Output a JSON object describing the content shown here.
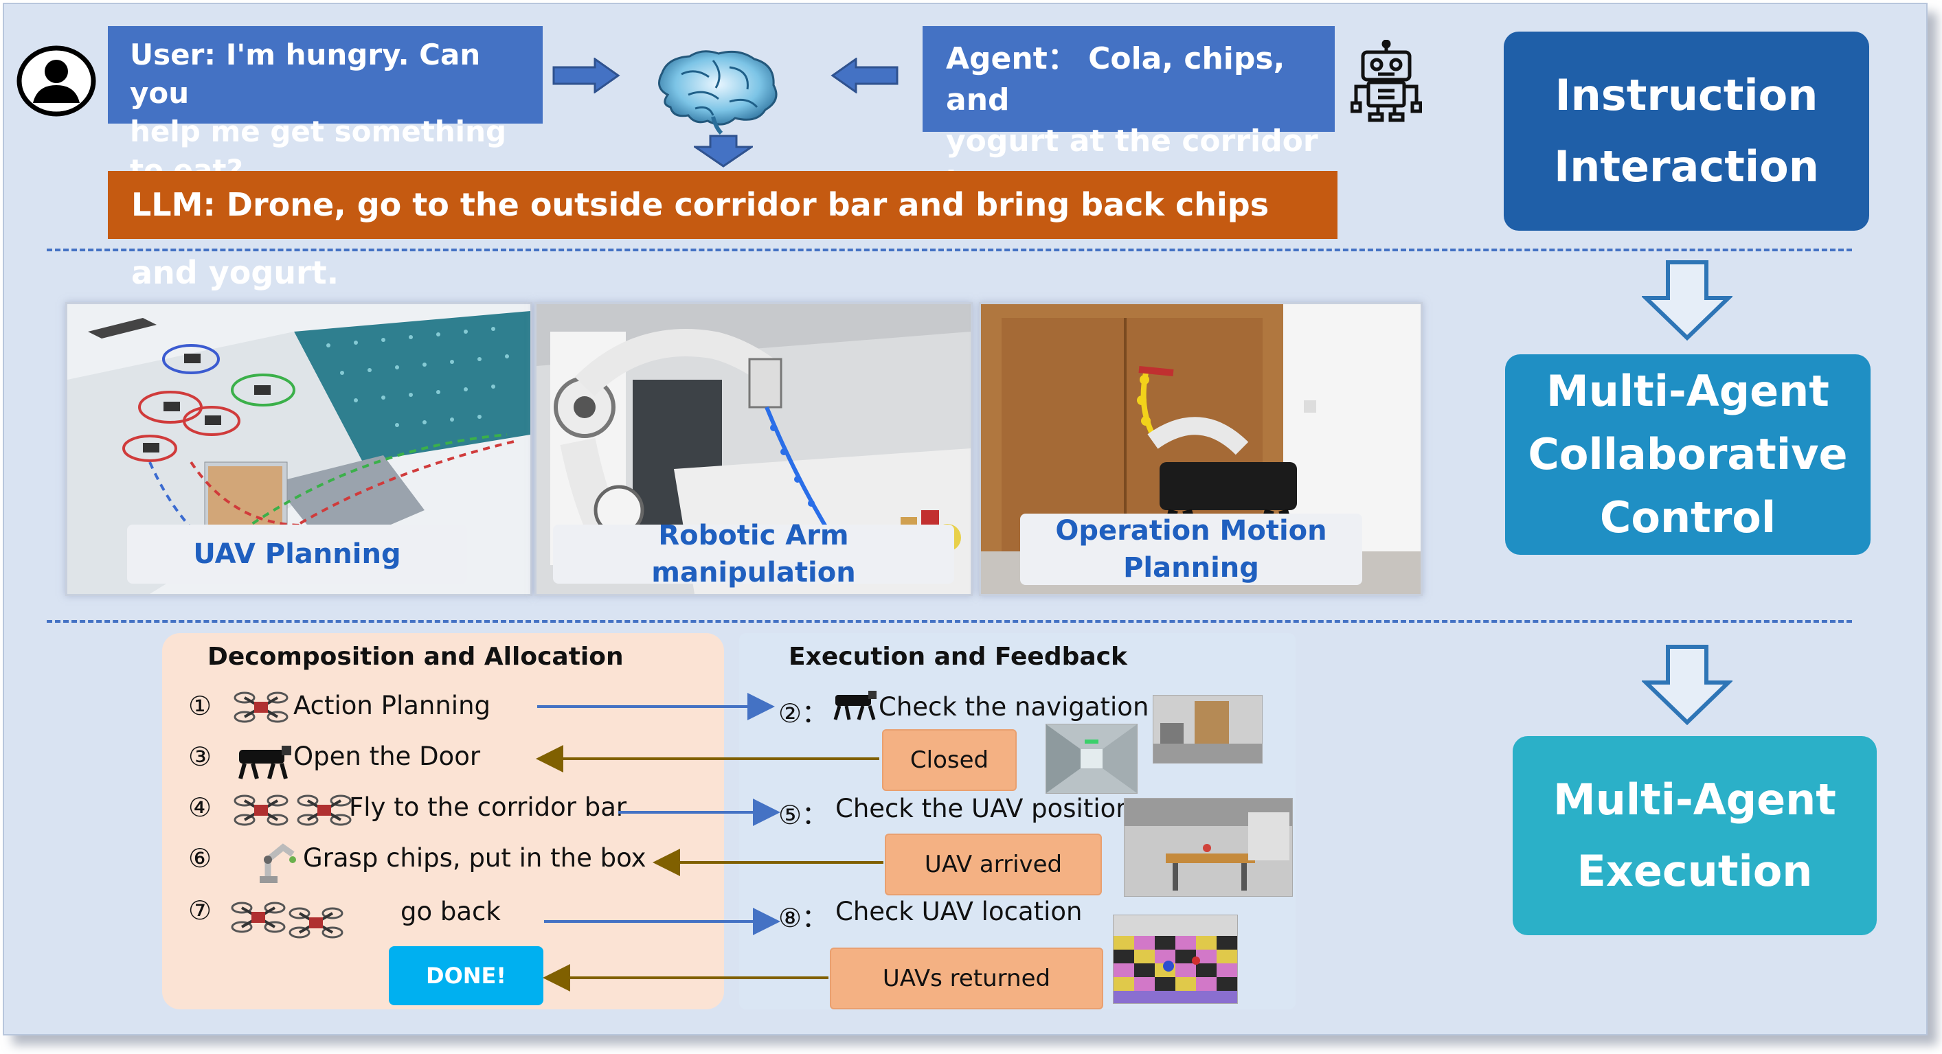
{
  "top": {
    "user_message": [
      "User: I'm hungry. Can you",
      "help me get something to eat?"
    ],
    "agent_message": [
      "Agent： Cola, chips, and",
      "yogurt at the corridor bar"
    ],
    "llm_message": "LLM: Drone, go to the outside corridor bar and bring back chips and yogurt."
  },
  "stages": [
    {
      "lines": [
        "Instruction",
        "Interaction"
      ],
      "color": "#1f5fa8"
    },
    {
      "lines": [
        "Multi-Agent",
        "Collaborative",
        "Control"
      ],
      "color": "#1f8fc4"
    },
    {
      "lines": [
        "Multi-Agent",
        "Execution"
      ],
      "color": "#2bb0c8"
    }
  ],
  "panels": {
    "uav_planning": "UAV Planning",
    "robotic_arm": "Robotic Arm manipulation",
    "operation_motion": [
      "Operation Motion",
      "Planning"
    ]
  },
  "decomposition": {
    "title": "Decomposition and Allocation",
    "steps": [
      {
        "num": "①",
        "text": "Action Planning"
      },
      {
        "num": "③",
        "text": "Open the Door"
      },
      {
        "num": "④",
        "text": "Fly to the corridor bar"
      },
      {
        "num": "⑥",
        "text": "Grasp chips, put in the box"
      },
      {
        "num": "⑦",
        "text": "go back"
      }
    ],
    "done": "DONE!"
  },
  "execution": {
    "title": "Execution and Feedback",
    "checks": [
      {
        "num": "②：",
        "text": "Check the navigation"
      },
      {
        "num": "⑤：",
        "text": "Check the UAV position"
      },
      {
        "num": "⑧：",
        "text": "Check UAV location"
      }
    ],
    "feedback": [
      "Closed",
      "UAV arrived",
      "UAVs returned"
    ]
  },
  "colors": {
    "blue_box": "#4472c4",
    "llm_box": "#c55a11",
    "decomp_panel": "#fbe3d4",
    "exec_panel": "#dae6f4",
    "feedback_box": "#f4b183",
    "done_button": "#00b0f0",
    "arrow_forward": "#4472c4",
    "arrow_back": "#806000"
  }
}
